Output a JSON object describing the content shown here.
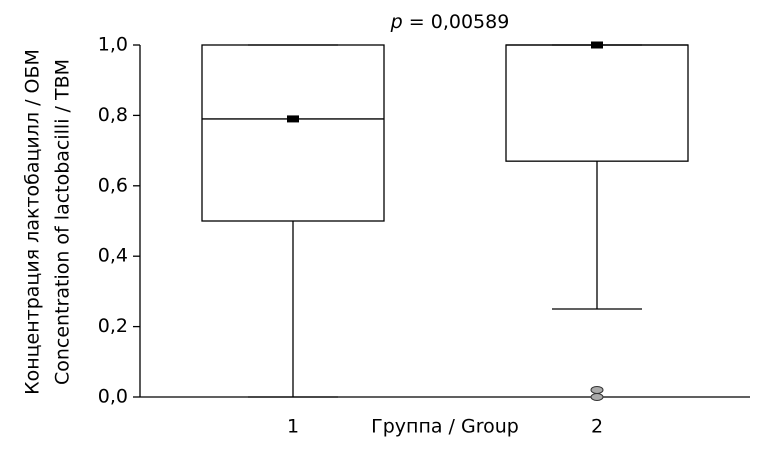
{
  "chart_data": {
    "type": "box",
    "annotation": {
      "symbol": "p",
      "text": "= 0,00589"
    },
    "x_label": "Группа / Group",
    "y_label": [
      "Концентрация лактобацилл / ОБМ",
      "Concentration of lactobacilli / ТВМ"
    ],
    "categories": [
      "1",
      "2"
    ],
    "boxes": [
      {
        "min": 0,
        "q1": 0.5,
        "median": 0.79,
        "q3": 1.0,
        "max": 1.0,
        "outliers": []
      },
      {
        "min": 0.25,
        "q1": 0.67,
        "median": 1.0,
        "q3": 1.0,
        "max": 1.0,
        "outliers": [
          0.02,
          0
        ]
      }
    ],
    "ylim": [
      0,
      1.0
    ],
    "yticks": [
      {
        "value": 0,
        "label": "0,0"
      },
      {
        "value": 0.2,
        "label": "0,2"
      },
      {
        "value": 0.4,
        "label": "0,4"
      },
      {
        "value": 0.6,
        "label": "0,6"
      },
      {
        "value": 0.8,
        "label": "0,8"
      },
      {
        "value": 1.0,
        "label": "1,0"
      }
    ],
    "color": "#000000"
  }
}
